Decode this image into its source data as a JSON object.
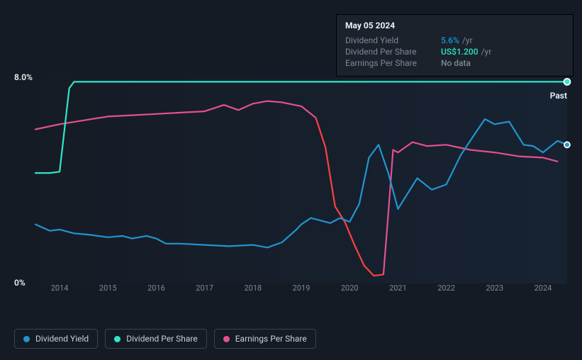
{
  "tooltip": {
    "date": "May 05 2024",
    "rows": [
      {
        "label": "Dividend Yield",
        "value": "5.6%",
        "unit": "/yr",
        "color": "blue"
      },
      {
        "label": "Dividend Per Share",
        "value": "US$1.200",
        "unit": "/yr",
        "color": "green"
      },
      {
        "label": "Earnings Per Share",
        "value": "No data",
        "unit": "",
        "color": "grey"
      }
    ]
  },
  "chart": {
    "type": "line",
    "y_axis": {
      "max_label": "8.0%",
      "min_label": "0%",
      "max": 8.0,
      "min": 0
    },
    "x_axis": {
      "ticks": [
        "2014",
        "2015",
        "2016",
        "2017",
        "2018",
        "2019",
        "2020",
        "2021",
        "2022",
        "2023",
        "2024"
      ],
      "start": 2013.5,
      "end": 2024.5
    },
    "past_label": "Past",
    "background_color_left": "#141e2d",
    "background_color_right": "#19283c",
    "grid_color": "none",
    "line_width": 2.2,
    "series": {
      "dividend_yield": {
        "name": "Dividend Yield",
        "color": "#2394d0",
        "points": [
          [
            2013.5,
            2.3
          ],
          [
            2013.8,
            2.05
          ],
          [
            2014.0,
            2.1
          ],
          [
            2014.3,
            1.95
          ],
          [
            2014.6,
            1.9
          ],
          [
            2015.0,
            1.8
          ],
          [
            2015.3,
            1.85
          ],
          [
            2015.5,
            1.75
          ],
          [
            2015.8,
            1.85
          ],
          [
            2016.0,
            1.75
          ],
          [
            2016.2,
            1.55
          ],
          [
            2016.5,
            1.55
          ],
          [
            2017.0,
            1.5
          ],
          [
            2017.5,
            1.45
          ],
          [
            2018.0,
            1.5
          ],
          [
            2018.3,
            1.4
          ],
          [
            2018.6,
            1.6
          ],
          [
            2018.9,
            2.1
          ],
          [
            2019.0,
            2.3
          ],
          [
            2019.2,
            2.55
          ],
          [
            2019.4,
            2.45
          ],
          [
            2019.6,
            2.35
          ],
          [
            2019.8,
            2.55
          ],
          [
            2020.0,
            2.4
          ],
          [
            2020.2,
            3.1
          ],
          [
            2020.4,
            4.9
          ],
          [
            2020.6,
            5.4
          ],
          [
            2020.8,
            4.3
          ],
          [
            2021.0,
            2.9
          ],
          [
            2021.2,
            3.5
          ],
          [
            2021.4,
            4.1
          ],
          [
            2021.7,
            3.65
          ],
          [
            2022.0,
            3.85
          ],
          [
            2022.3,
            5.0
          ],
          [
            2022.6,
            5.85
          ],
          [
            2022.8,
            6.4
          ],
          [
            2023.0,
            6.2
          ],
          [
            2023.3,
            6.3
          ],
          [
            2023.6,
            5.4
          ],
          [
            2023.8,
            5.35
          ],
          [
            2024.0,
            5.1
          ],
          [
            2024.3,
            5.55
          ],
          [
            2024.5,
            5.4
          ]
        ]
      },
      "dividend_per_share": {
        "name": "Dividend Per Share",
        "color": "#34e4ca",
        "points": [
          [
            2013.5,
            4.3
          ],
          [
            2013.8,
            4.3
          ],
          [
            2014.0,
            4.35
          ],
          [
            2014.2,
            7.6
          ],
          [
            2014.3,
            7.85
          ],
          [
            2015.0,
            7.85
          ],
          [
            2016.0,
            7.85
          ],
          [
            2017.0,
            7.85
          ],
          [
            2018.0,
            7.85
          ],
          [
            2019.0,
            7.85
          ],
          [
            2020.0,
            7.85
          ],
          [
            2021.0,
            7.85
          ],
          [
            2022.0,
            7.85
          ],
          [
            2023.0,
            7.85
          ],
          [
            2024.0,
            7.85
          ],
          [
            2024.5,
            7.85
          ]
        ],
        "end_dot": true
      },
      "earnings_per_share_normal": {
        "name": "Earnings Per Share",
        "color": "#e5508f",
        "segments": [
          [
            [
              2013.5,
              6.0
            ],
            [
              2014.0,
              6.2
            ],
            [
              2014.5,
              6.35
            ],
            [
              2015.0,
              6.5
            ],
            [
              2015.5,
              6.55
            ],
            [
              2016.0,
              6.6
            ],
            [
              2016.5,
              6.65
            ],
            [
              2017.0,
              6.7
            ],
            [
              2017.4,
              6.95
            ],
            [
              2017.7,
              6.75
            ],
            [
              2018.0,
              7.0
            ],
            [
              2018.3,
              7.1
            ],
            [
              2018.6,
              7.05
            ],
            [
              2019.0,
              6.9
            ],
            [
              2019.3,
              6.45
            ]
          ],
          [
            [
              2020.7,
              0.35
            ],
            [
              2020.8,
              2.7
            ],
            [
              2020.9,
              5.2
            ],
            [
              2021.0,
              5.1
            ],
            [
              2021.3,
              5.5
            ],
            [
              2021.6,
              5.35
            ],
            [
              2022.0,
              5.4
            ],
            [
              2022.5,
              5.2
            ],
            [
              2023.0,
              5.1
            ],
            [
              2023.5,
              4.95
            ],
            [
              2024.0,
              4.9
            ],
            [
              2024.3,
              4.75
            ]
          ]
        ]
      },
      "earnings_per_share_danger": {
        "color": "#fb4141",
        "points": [
          [
            2019.3,
            6.45
          ],
          [
            2019.5,
            5.3
          ],
          [
            2019.7,
            3.0
          ],
          [
            2019.9,
            2.4
          ],
          [
            2020.1,
            1.5
          ],
          [
            2020.3,
            0.7
          ],
          [
            2020.5,
            0.3
          ],
          [
            2020.7,
            0.35
          ]
        ]
      }
    },
    "legend": [
      {
        "label": "Dividend Yield",
        "color": "#2394d0"
      },
      {
        "label": "Dividend Per Share",
        "color": "#34e4ca"
      },
      {
        "label": "Earnings Per Share",
        "color": "#e5508f"
      }
    ]
  }
}
